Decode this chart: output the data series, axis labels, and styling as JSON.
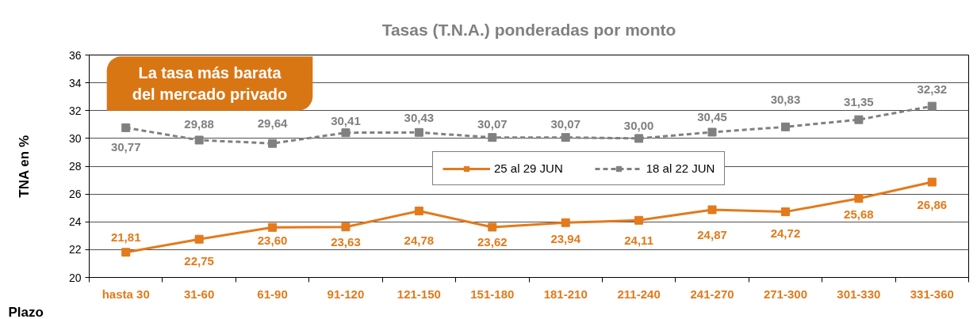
{
  "chart_data": {
    "type": "line",
    "title": "Tasas (T.N.A.) ponderadas por monto",
    "xlabel": "Plazo",
    "ylabel": "TNA en %",
    "annotations": [
      "La tasa más barata del mercado privado"
    ],
    "categories": [
      "hasta 30",
      "31-60",
      "61-90",
      "91-120",
      "121-150",
      "151-180",
      "181-210",
      "211-240",
      "241-270",
      "271-300",
      "301-330",
      "331-360"
    ],
    "series": [
      {
        "name": "25 al 29 JUN",
        "color": "#e37a1b",
        "line_style": "solid",
        "values": [
          21.81,
          22.75,
          23.6,
          23.63,
          24.78,
          23.62,
          23.94,
          24.11,
          24.87,
          24.72,
          25.68,
          26.86
        ],
        "value_labels": [
          "21,81",
          "22,75",
          "23,60",
          "23,63",
          "24,78",
          "23,62",
          "23,94",
          "24,11",
          "24,87",
          "24,72",
          "25,68",
          "26,86"
        ]
      },
      {
        "name": "18 al 22 JUN",
        "color": "#808080",
        "line_style": "dashed",
        "values": [
          30.77,
          29.88,
          29.64,
          30.41,
          30.43,
          30.07,
          30.07,
          30.0,
          30.45,
          30.83,
          31.35,
          32.32
        ],
        "value_labels": [
          "30,77",
          "29,88",
          "29,64",
          "30,41",
          "30,43",
          "30,07",
          "30,07",
          "30,00",
          "30,45",
          "30,83",
          "31,35",
          "32,32"
        ]
      }
    ],
    "ylim": [
      20,
      36
    ],
    "yticks": [
      20,
      22,
      24,
      26,
      28,
      30,
      32,
      34,
      36
    ],
    "grid": "y",
    "legend": "center",
    "marker": "square"
  }
}
